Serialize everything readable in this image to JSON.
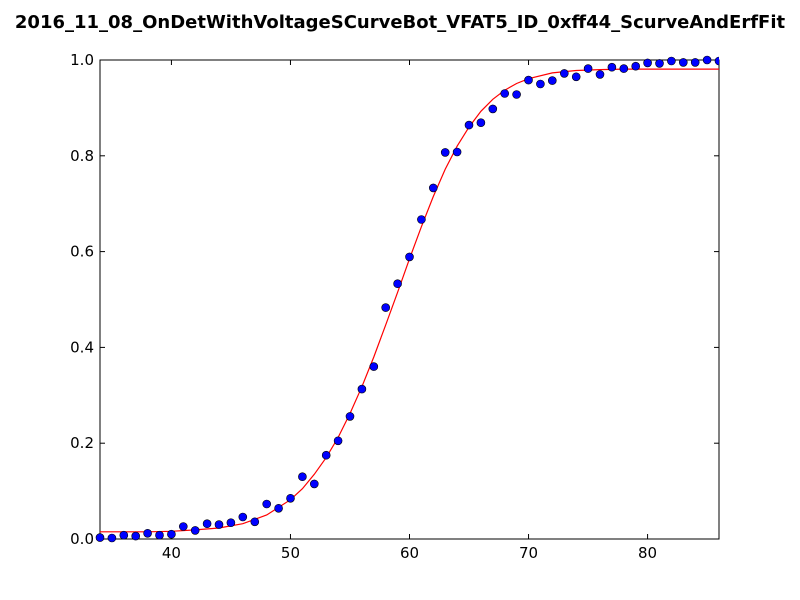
{
  "chart_data": {
    "type": "scatter",
    "title": "2016_11_08_OnDetWithVoltageSCurveBot_VFAT5_ID_0xff44_ScurveAndErfFit",
    "xlabel": "",
    "ylabel": "",
    "xlim": [
      34,
      86
    ],
    "ylim": [
      0.0,
      1.0
    ],
    "xticks": [
      40,
      50,
      60,
      70,
      80
    ],
    "yticks": [
      0.0,
      0.2,
      0.4,
      0.6,
      0.8,
      1.0
    ],
    "xtick_labels": [
      "40",
      "50",
      "60",
      "70",
      "80"
    ],
    "ytick_labels": [
      "0.0",
      "0.2",
      "0.4",
      "0.6",
      "0.8",
      "1.0"
    ],
    "grid": false,
    "series": [
      {
        "kind": "points",
        "color": "#0000ff",
        "x": [
          34,
          35,
          36,
          37,
          38,
          39,
          40,
          41,
          42,
          43,
          44,
          45,
          46,
          47,
          48,
          49,
          50,
          51,
          52,
          53,
          54,
          55,
          56,
          57,
          58,
          59,
          60,
          61,
          62,
          63,
          64,
          65,
          66,
          67,
          68,
          69,
          70,
          71,
          72,
          73,
          74,
          75,
          76,
          77,
          78,
          79,
          80,
          81,
          82,
          83,
          84,
          85,
          86
        ],
        "y": [
          0.003,
          0.002,
          0.008,
          0.006,
          0.012,
          0.008,
          0.01,
          0.026,
          0.018,
          0.032,
          0.03,
          0.034,
          0.046,
          0.036,
          0.073,
          0.064,
          0.085,
          0.13,
          0.115,
          0.175,
          0.205,
          0.256,
          0.313,
          0.36,
          0.483,
          0.533,
          0.589,
          0.667,
          0.733,
          0.807,
          0.808,
          0.864,
          0.869,
          0.898,
          0.93,
          0.928,
          0.958,
          0.95,
          0.957,
          0.972,
          0.965,
          0.982,
          0.97,
          0.985,
          0.982,
          0.987,
          0.994,
          0.993,
          0.998,
          0.995,
          0.995,
          1.0,
          0.998
        ]
      },
      {
        "kind": "fit-curve",
        "color": "#ff0000",
        "x": [
          34,
          36,
          38,
          40,
          42,
          44,
          46,
          48,
          50,
          51,
          52,
          53,
          54,
          55,
          56,
          57,
          58,
          59,
          60,
          61,
          62,
          63,
          64,
          65,
          66,
          67,
          68,
          69,
          70,
          72,
          74,
          76,
          78,
          80,
          82,
          84,
          86
        ],
        "y": [
          0.015,
          0.015,
          0.015,
          0.016,
          0.019,
          0.023,
          0.032,
          0.05,
          0.082,
          0.105,
          0.135,
          0.17,
          0.212,
          0.262,
          0.318,
          0.38,
          0.447,
          0.515,
          0.585,
          0.652,
          0.715,
          0.772,
          0.82,
          0.86,
          0.893,
          0.918,
          0.937,
          0.951,
          0.961,
          0.973,
          0.978,
          0.98,
          0.981,
          0.981,
          0.981,
          0.981,
          0.981
        ]
      }
    ]
  }
}
